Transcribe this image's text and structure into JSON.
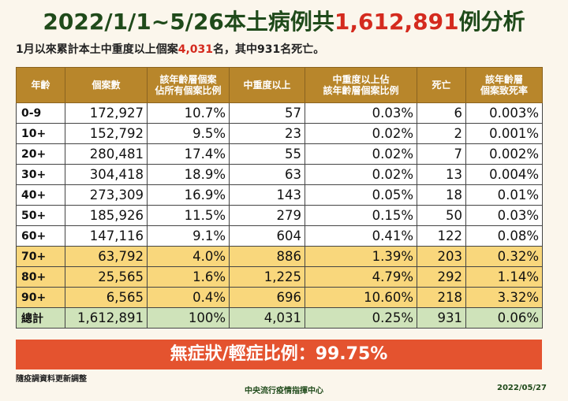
{
  "title": {
    "prefix": "2022/1/1~5/26本土病例共",
    "highlight": "1,612,891",
    "suffix": "例分析"
  },
  "subtitle": {
    "prefix": "1月以來累計本土中重度以上個案",
    "highlight": "4,031",
    "suffix": "名，其中931名死亡。"
  },
  "table": {
    "headers": [
      "年齡",
      "個案數",
      "該年齡層個案\n佔所有個案比例",
      "中重度以上",
      "中重度以上佔\n該年齡層個案比例",
      "死亡",
      "該年齡層\n個案致死率"
    ],
    "rows": [
      {
        "age": "0-9",
        "cases": "172,927",
        "case_pct": "10.7%",
        "severe": "57",
        "severe_pct": "0.03%",
        "deaths": "6",
        "fatality": "0.003%",
        "tone": "white"
      },
      {
        "age": "10+",
        "cases": "152,792",
        "case_pct": "9.5%",
        "severe": "23",
        "severe_pct": "0.02%",
        "deaths": "2",
        "fatality": "0.001%",
        "tone": "white"
      },
      {
        "age": "20+",
        "cases": "280,481",
        "case_pct": "17.4%",
        "severe": "55",
        "severe_pct": "0.02%",
        "deaths": "7",
        "fatality": "0.002%",
        "tone": "white"
      },
      {
        "age": "30+",
        "cases": "304,418",
        "case_pct": "18.9%",
        "severe": "63",
        "severe_pct": "0.02%",
        "deaths": "13",
        "fatality": "0.004%",
        "tone": "white"
      },
      {
        "age": "40+",
        "cases": "273,309",
        "case_pct": "16.9%",
        "severe": "143",
        "severe_pct": "0.05%",
        "deaths": "18",
        "fatality": "0.01%",
        "tone": "white"
      },
      {
        "age": "50+",
        "cases": "185,926",
        "case_pct": "11.5%",
        "severe": "279",
        "severe_pct": "0.15%",
        "deaths": "50",
        "fatality": "0.03%",
        "tone": "white"
      },
      {
        "age": "60+",
        "cases": "147,116",
        "case_pct": "9.1%",
        "severe": "604",
        "severe_pct": "0.41%",
        "deaths": "122",
        "fatality": "0.08%",
        "tone": "white"
      },
      {
        "age": "70+",
        "cases": "63,792",
        "case_pct": "4.0%",
        "severe": "886",
        "severe_pct": "1.39%",
        "deaths": "203",
        "fatality": "0.32%",
        "tone": "yellow"
      },
      {
        "age": "80+",
        "cases": "25,565",
        "case_pct": "1.6%",
        "severe": "1,225",
        "severe_pct": "4.79%",
        "deaths": "292",
        "fatality": "1.14%",
        "tone": "yellow"
      },
      {
        "age": "90+",
        "cases": "6,565",
        "case_pct": "0.4%",
        "severe": "696",
        "severe_pct": "10.60%",
        "deaths": "218",
        "fatality": "3.32%",
        "tone": "yellow"
      },
      {
        "age": "總計",
        "cases": "1,612,891",
        "case_pct": "100%",
        "severe": "4,031",
        "severe_pct": "0.25%",
        "deaths": "931",
        "fatality": "0.06%",
        "tone": "total"
      }
    ]
  },
  "banner": "無症狀/輕症比例：99.75%",
  "footnote": "隨疫調資料更新調整",
  "footer": {
    "center": "中央流行疫情指揮中心",
    "date": "2022/05/27"
  },
  "colors": {
    "header_bg": "#b8862b",
    "yellow_rows": "#f9d77c",
    "total_row": "#cfe3ba",
    "banner_bg": "#e4532f",
    "highlight_red": "#d42a1e",
    "title_green": "#1f4a1a"
  }
}
